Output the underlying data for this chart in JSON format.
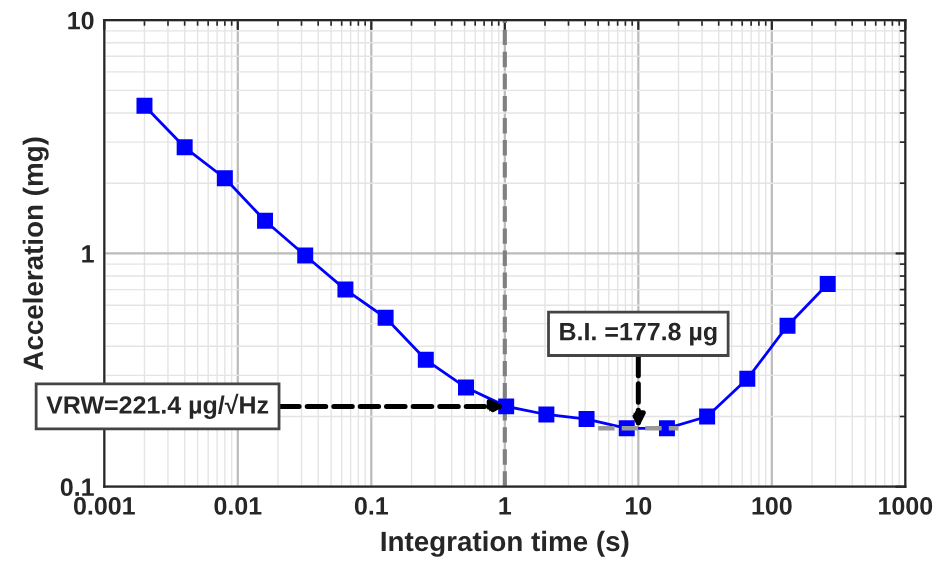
{
  "chart_data": {
    "type": "line",
    "xlabel": "Integration time (s)",
    "ylabel": "Acceleration (mg)",
    "log": "xy",
    "grid": true,
    "marker": "square",
    "line_style": "solid",
    "xlim": [
      0.001,
      1000
    ],
    "xticks": [
      {
        "value": 0.001,
        "label": "0.001"
      },
      {
        "value": 0.01,
        "label": "0.01"
      },
      {
        "value": 0.1,
        "label": "0.1"
      },
      1,
      10,
      100,
      1000
    ],
    "ylim": [
      0.1,
      10
    ],
    "yticks": [
      {
        "value": 0.1,
        "label": "0.1"
      },
      1,
      10
    ],
    "series": [
      {
        "color": "#0000ff",
        "x": [
          0.002,
          0.004,
          0.008,
          0.016,
          0.032,
          0.064,
          0.128,
          0.256,
          0.512,
          1.024,
          2.048,
          4.096,
          8.192,
          16.384,
          32.768,
          65.536,
          131.072,
          262.144
        ],
        "values": [
          4.3,
          2.85,
          2.1,
          1.38,
          0.98,
          0.7,
          0.53,
          0.35,
          0.266,
          0.221,
          0.204,
          0.195,
          0.178,
          0.178,
          0.2,
          0.29,
          0.49,
          0.74
        ]
      },
      {
        "type": "line",
        "color": "#999999",
        "line_style": "dashed",
        "marker": "none",
        "x": [
          5,
          20
        ],
        "values": [
          0.178,
          0.178
        ]
      }
    ],
    "ref_lines": [
      {
        "axis": "x",
        "value": 1,
        "color": "#808080",
        "line_style": "dashed"
      }
    ],
    "annotations": [
      {
        "text": "VRW=221.4 µg/√Hz",
        "x": 1,
        "y": 0.221
      },
      {
        "text": "B.I. =177.8 µg",
        "x": 10,
        "y": 0.178
      }
    ]
  }
}
